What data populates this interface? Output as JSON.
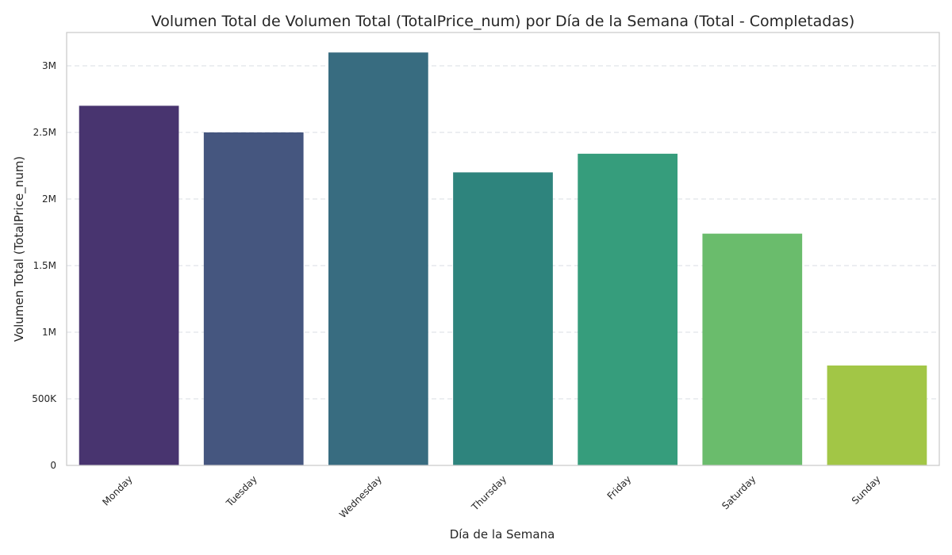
{
  "chart_data": {
    "type": "bar",
    "title": "Volumen Total de Volumen Total (TotalPrice_num) por Día de la Semana (Total - Completadas)",
    "xlabel": "Día de la Semana",
    "ylabel": "Volumen Total (TotalPrice_num)",
    "categories": [
      "Monday",
      "Tuesday",
      "Wednesday",
      "Thursday",
      "Friday",
      "Saturday",
      "Sunday"
    ],
    "values": [
      2700000,
      2500000,
      3100000,
      2200000,
      2340000,
      1740000,
      750000
    ],
    "colors": [
      "#48346f",
      "#45567f",
      "#386c80",
      "#2e847d",
      "#369d7c",
      "#6abc6c",
      "#a2c646"
    ],
    "ylim": [
      0,
      3250000
    ],
    "yticks": [
      0,
      500000,
      1000000,
      1500000,
      2000000,
      2500000,
      3000000
    ],
    "ytick_labels": [
      "0",
      "500K",
      "1M",
      "1.5M",
      "2M",
      "2.5M",
      "3M"
    ],
    "grid": "y-dashed",
    "legend": "none"
  }
}
